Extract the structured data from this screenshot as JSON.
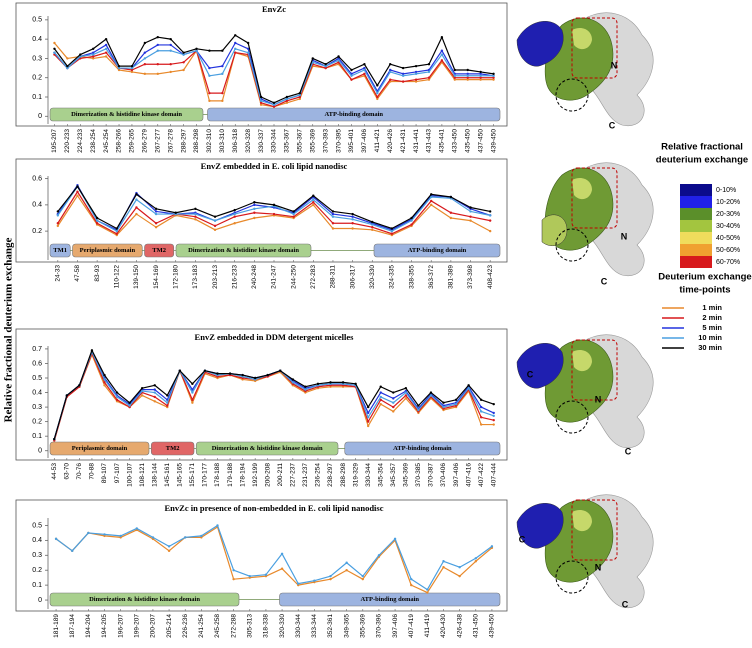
{
  "y_label": "Relative fractional deuterium exchange",
  "chart_data": [
    {
      "type": "line",
      "title": "EnvZc",
      "categories": [
        "195-207",
        "220-233",
        "224-233",
        "238-254",
        "245-254",
        "258-266",
        "259-265",
        "266-279",
        "267-277",
        "267-278",
        "288-297",
        "288-298",
        "302-310",
        "303-310",
        "306-318",
        "320-328",
        "330-337",
        "330-344",
        "335-367",
        "355-367",
        "355-369",
        "370-393",
        "370-395",
        "395-401",
        "397-406",
        "411-421",
        "420-426",
        "421-431",
        "431-441",
        "431-443",
        "435-441",
        "433-450",
        "435-450",
        "437-450",
        "439-450"
      ],
      "series": [
        {
          "name": "1 min",
          "color": "#e8892b",
          "values": [
            0.38,
            0.3,
            0.31,
            0.3,
            0.31,
            0.24,
            0.23,
            0.22,
            0.22,
            0.23,
            0.24,
            0.34,
            0.08,
            0.08,
            0.33,
            0.31,
            0.06,
            0.05,
            0.07,
            0.09,
            0.26,
            0.25,
            0.27,
            0.19,
            0.21,
            0.09,
            0.18,
            0.18,
            0.18,
            0.19,
            0.28,
            0.19,
            0.19,
            0.19,
            0.19
          ]
        },
        {
          "name": "2 min",
          "color": "#d7191c",
          "values": [
            0.32,
            0.25,
            0.3,
            0.31,
            0.33,
            0.25,
            0.24,
            0.27,
            0.27,
            0.27,
            0.28,
            0.34,
            0.12,
            0.12,
            0.33,
            0.32,
            0.07,
            0.05,
            0.08,
            0.1,
            0.27,
            0.25,
            0.28,
            0.19,
            0.22,
            0.1,
            0.19,
            0.18,
            0.19,
            0.2,
            0.29,
            0.2,
            0.2,
            0.2,
            0.2
          ]
        },
        {
          "name": "5 min",
          "color": "#2233dd",
          "values": [
            0.33,
            0.25,
            0.31,
            0.33,
            0.37,
            0.25,
            0.25,
            0.33,
            0.37,
            0.37,
            0.32,
            0.34,
            0.25,
            0.26,
            0.38,
            0.35,
            0.09,
            0.06,
            0.09,
            0.11,
            0.29,
            0.26,
            0.3,
            0.22,
            0.25,
            0.13,
            0.24,
            0.22,
            0.23,
            0.24,
            0.34,
            0.22,
            0.22,
            0.22,
            0.21
          ]
        },
        {
          "name": "10 min",
          "color": "#4a9fe0",
          "values": [
            0.33,
            0.25,
            0.31,
            0.32,
            0.35,
            0.25,
            0.25,
            0.3,
            0.34,
            0.34,
            0.32,
            0.34,
            0.21,
            0.22,
            0.35,
            0.33,
            0.08,
            0.06,
            0.09,
            0.11,
            0.28,
            0.26,
            0.29,
            0.21,
            0.24,
            0.12,
            0.23,
            0.21,
            0.22,
            0.23,
            0.32,
            0.21,
            0.21,
            0.21,
            0.21
          ]
        },
        {
          "name": "30 min",
          "color": "#000000",
          "values": [
            0.35,
            0.26,
            0.32,
            0.35,
            0.4,
            0.26,
            0.26,
            0.38,
            0.41,
            0.4,
            0.33,
            0.35,
            0.34,
            0.34,
            0.42,
            0.38,
            0.1,
            0.07,
            0.1,
            0.12,
            0.3,
            0.27,
            0.31,
            0.24,
            0.27,
            0.16,
            0.27,
            0.25,
            0.26,
            0.27,
            0.41,
            0.24,
            0.24,
            0.23,
            0.22
          ]
        }
      ],
      "domains": [
        {
          "label": "Dimerization & histidine kinase domain",
          "color": "#a9d08e"
        },
        {
          "label": "ATP-binding domain",
          "color": "#9db4e0"
        }
      ],
      "ylim": [
        -0.04,
        0.52
      ],
      "yticks": [
        0,
        0.1,
        0.2,
        0.3,
        0.4,
        0.5
      ]
    },
    {
      "type": "line",
      "title": "EnvZ embedded in E. coli lipid nanodisc",
      "categories": [
        "24-33",
        "47-58",
        "83-93",
        "110-122",
        "139-150",
        "154-169",
        "172-180",
        "173-183",
        "203-213",
        "216-233",
        "240-248",
        "241-247",
        "244-250",
        "272-283",
        "288-311",
        "306-317",
        "320-330",
        "324-335",
        "338-355",
        "363-372",
        "381-389",
        "373-398",
        "408-423"
      ],
      "series": [
        {
          "name": "1 min",
          "color": "#e8892b",
          "values": [
            0.24,
            0.47,
            0.25,
            0.17,
            0.33,
            0.23,
            0.32,
            0.29,
            0.21,
            0.26,
            0.3,
            0.32,
            0.3,
            0.4,
            0.22,
            0.22,
            0.21,
            0.17,
            0.24,
            0.4,
            0.3,
            0.28,
            0.2
          ]
        },
        {
          "name": "2 min",
          "color": "#d7191c",
          "values": [
            0.26,
            0.5,
            0.26,
            0.18,
            0.38,
            0.26,
            0.33,
            0.31,
            0.24,
            0.31,
            0.34,
            0.33,
            0.31,
            0.42,
            0.26,
            0.26,
            0.23,
            0.18,
            0.25,
            0.43,
            0.34,
            0.31,
            0.28
          ]
        },
        {
          "name": "5 min",
          "color": "#2233dd",
          "values": [
            0.33,
            0.55,
            0.28,
            0.21,
            0.49,
            0.35,
            0.33,
            0.34,
            0.28,
            0.34,
            0.4,
            0.38,
            0.34,
            0.46,
            0.33,
            0.31,
            0.26,
            0.21,
            0.29,
            0.47,
            0.46,
            0.37,
            0.32
          ]
        },
        {
          "name": "10 min",
          "color": "#4a9fe0",
          "values": [
            0.32,
            0.54,
            0.28,
            0.2,
            0.44,
            0.33,
            0.33,
            0.33,
            0.28,
            0.33,
            0.37,
            0.39,
            0.33,
            0.44,
            0.31,
            0.29,
            0.25,
            0.2,
            0.28,
            0.46,
            0.45,
            0.35,
            0.32
          ]
        },
        {
          "name": "30 min",
          "color": "#000000",
          "values": [
            0.35,
            0.54,
            0.3,
            0.22,
            0.48,
            0.37,
            0.34,
            0.37,
            0.31,
            0.36,
            0.42,
            0.4,
            0.35,
            0.47,
            0.35,
            0.33,
            0.27,
            0.22,
            0.3,
            0.48,
            0.46,
            0.38,
            0.35
          ]
        }
      ],
      "domains": [
        {
          "label": "TM1",
          "color": "#9db4e0"
        },
        {
          "label": "Periplasmic domain",
          "color": "#e6a96e"
        },
        {
          "label": "TM2",
          "color": "#e06666"
        },
        {
          "label": "Dimerization & histidine kinase domain",
          "color": "#a9d08e"
        },
        {
          "label": "ATP-binding domain",
          "color": "#9db4e0"
        }
      ],
      "ylim": [
        -0.02,
        0.62
      ],
      "yticks": [
        0.2,
        0.4,
        0.6
      ]
    },
    {
      "type": "line",
      "title": "EnvZ embedded in DDM detergent micelles",
      "categories": [
        "44-53",
        "63-70",
        "70-76",
        "70-88",
        "89-107",
        "97-107",
        "100-107",
        "108-121",
        "138-144",
        "145-161",
        "145-165",
        "155-171",
        "170-177",
        "178-188",
        "179-188",
        "178-194",
        "192-199",
        "200-208",
        "200-211",
        "227-237",
        "231-237",
        "236-254",
        "238-297",
        "288-298",
        "319-329",
        "330-344",
        "345-354",
        "345-357",
        "345-369",
        "370-385",
        "370-387",
        "370-406",
        "397-406",
        "407-416",
        "407-422",
        "407-444"
      ],
      "series": [
        {
          "name": "1 min",
          "color": "#e8892b",
          "values": [
            0.07,
            0.37,
            0.44,
            0.66,
            0.45,
            0.34,
            0.3,
            0.38,
            0.34,
            0.3,
            0.55,
            0.33,
            0.53,
            0.5,
            0.52,
            0.49,
            0.48,
            0.51,
            0.54,
            0.45,
            0.4,
            0.43,
            0.44,
            0.44,
            0.44,
            0.17,
            0.32,
            0.27,
            0.36,
            0.26,
            0.36,
            0.28,
            0.3,
            0.41,
            0.18,
            0.18
          ]
        },
        {
          "name": "2 min",
          "color": "#d7191c",
          "values": [
            0.07,
            0.37,
            0.44,
            0.67,
            0.47,
            0.35,
            0.3,
            0.4,
            0.37,
            0.31,
            0.55,
            0.35,
            0.54,
            0.51,
            0.52,
            0.5,
            0.49,
            0.51,
            0.55,
            0.46,
            0.41,
            0.44,
            0.45,
            0.45,
            0.44,
            0.2,
            0.35,
            0.3,
            0.38,
            0.27,
            0.37,
            0.29,
            0.31,
            0.42,
            0.23,
            0.21
          ]
        },
        {
          "name": "5 min",
          "color": "#2233dd",
          "values": [
            0.08,
            0.38,
            0.45,
            0.68,
            0.5,
            0.38,
            0.32,
            0.42,
            0.42,
            0.35,
            0.55,
            0.42,
            0.55,
            0.53,
            0.53,
            0.52,
            0.5,
            0.52,
            0.55,
            0.48,
            0.43,
            0.45,
            0.46,
            0.46,
            0.45,
            0.26,
            0.4,
            0.36,
            0.41,
            0.29,
            0.39,
            0.31,
            0.33,
            0.44,
            0.3,
            0.26
          ]
        },
        {
          "name": "10 min",
          "color": "#4a9fe0",
          "values": [
            0.08,
            0.38,
            0.45,
            0.68,
            0.49,
            0.37,
            0.31,
            0.41,
            0.4,
            0.33,
            0.55,
            0.4,
            0.55,
            0.52,
            0.53,
            0.51,
            0.49,
            0.52,
            0.55,
            0.47,
            0.42,
            0.45,
            0.46,
            0.46,
            0.45,
            0.23,
            0.37,
            0.33,
            0.4,
            0.28,
            0.38,
            0.3,
            0.32,
            0.43,
            0.27,
            0.24
          ]
        },
        {
          "name": "30 min",
          "color": "#000000",
          "values": [
            0.08,
            0.38,
            0.45,
            0.69,
            0.52,
            0.4,
            0.33,
            0.43,
            0.45,
            0.38,
            0.55,
            0.46,
            0.55,
            0.53,
            0.53,
            0.52,
            0.5,
            0.52,
            0.55,
            0.49,
            0.44,
            0.46,
            0.47,
            0.47,
            0.46,
            0.3,
            0.44,
            0.4,
            0.43,
            0.31,
            0.4,
            0.33,
            0.35,
            0.45,
            0.35,
            0.32
          ]
        }
      ],
      "domains": [
        {
          "label": "Periplasmic domain",
          "color": "#e6a96e"
        },
        {
          "label": "TM2",
          "color": "#e06666"
        },
        {
          "label": "Dimerization & histidine kinase domain",
          "color": "#a9d08e"
        },
        {
          "label": "ATP-binding domain",
          "color": "#9db4e0"
        }
      ],
      "ylim": [
        -0.05,
        0.72
      ],
      "yticks": [
        0,
        0.1,
        0.2,
        0.3,
        0.4,
        0.5,
        0.6,
        0.7
      ]
    },
    {
      "type": "line",
      "title": "EnvZc in presence of non-embedded in E. coli lipid nanodisc",
      "categories": [
        "181-189",
        "187-194",
        "194-204",
        "194-205",
        "196-207",
        "199-207",
        "200-207",
        "205-214",
        "226-236",
        "241-254",
        "245-258",
        "272-288",
        "305-313",
        "318-338",
        "320-330",
        "330-344",
        "333-344",
        "352-361",
        "349-365",
        "355-369",
        "370-396",
        "397-406",
        "407-419",
        "411-419",
        "420-430",
        "426-438",
        "431-450",
        "439-450"
      ],
      "series": [
        {
          "name": "1 min",
          "color": "#e8892b",
          "values": [
            0.41,
            0.33,
            0.45,
            0.43,
            0.42,
            0.47,
            0.41,
            0.33,
            0.42,
            0.42,
            0.49,
            0.14,
            0.15,
            0.16,
            0.21,
            0.1,
            0.12,
            0.14,
            0.2,
            0.14,
            0.29,
            0.4,
            0.1,
            0.05,
            0.22,
            0.16,
            0.26,
            0.35
          ]
        },
        {
          "name": "10 min",
          "color": "#4a9fe0",
          "values": [
            0.41,
            0.33,
            0.45,
            0.44,
            0.43,
            0.48,
            0.42,
            0.36,
            0.42,
            0.43,
            0.5,
            0.2,
            0.16,
            0.17,
            0.31,
            0.11,
            0.13,
            0.16,
            0.25,
            0.16,
            0.3,
            0.41,
            0.14,
            0.07,
            0.26,
            0.22,
            0.28,
            0.36
          ]
        }
      ],
      "domains": [
        {
          "label": "Dimerization & histidine kinase domain",
          "color": "#a9d08e"
        },
        {
          "label": "ATP-binding domain",
          "color": "#9db4e0"
        }
      ],
      "ylim": [
        -0.06,
        0.55
      ],
      "yticks": [
        0,
        0.1,
        0.2,
        0.3,
        0.4,
        0.5
      ]
    }
  ],
  "color_scale": {
    "title": [
      "Relative fractional",
      "deuterium exchange"
    ],
    "items": [
      {
        "label": "0-10%",
        "color": "#0b0b8c"
      },
      {
        "label": "10-20%",
        "color": "#2020e8"
      },
      {
        "label": "20-30%",
        "color": "#5b8f2a"
      },
      {
        "label": "30-40%",
        "color": "#a3c53f"
      },
      {
        "label": "40-50%",
        "color": "#f0dc5c"
      },
      {
        "label": "50-60%",
        "color": "#f0a030"
      },
      {
        "label": "60-70%",
        "color": "#d7191c"
      }
    ]
  },
  "timepoints_title": [
    "Deuterium exchange",
    "time-points"
  ],
  "structures": [
    {
      "labels": [
        "N",
        "C"
      ]
    },
    {
      "labels": [
        "N",
        "C"
      ]
    },
    {
      "labels": [
        "C",
        "N",
        "C"
      ]
    },
    {
      "labels": [
        "C",
        "N",
        "C"
      ]
    }
  ]
}
